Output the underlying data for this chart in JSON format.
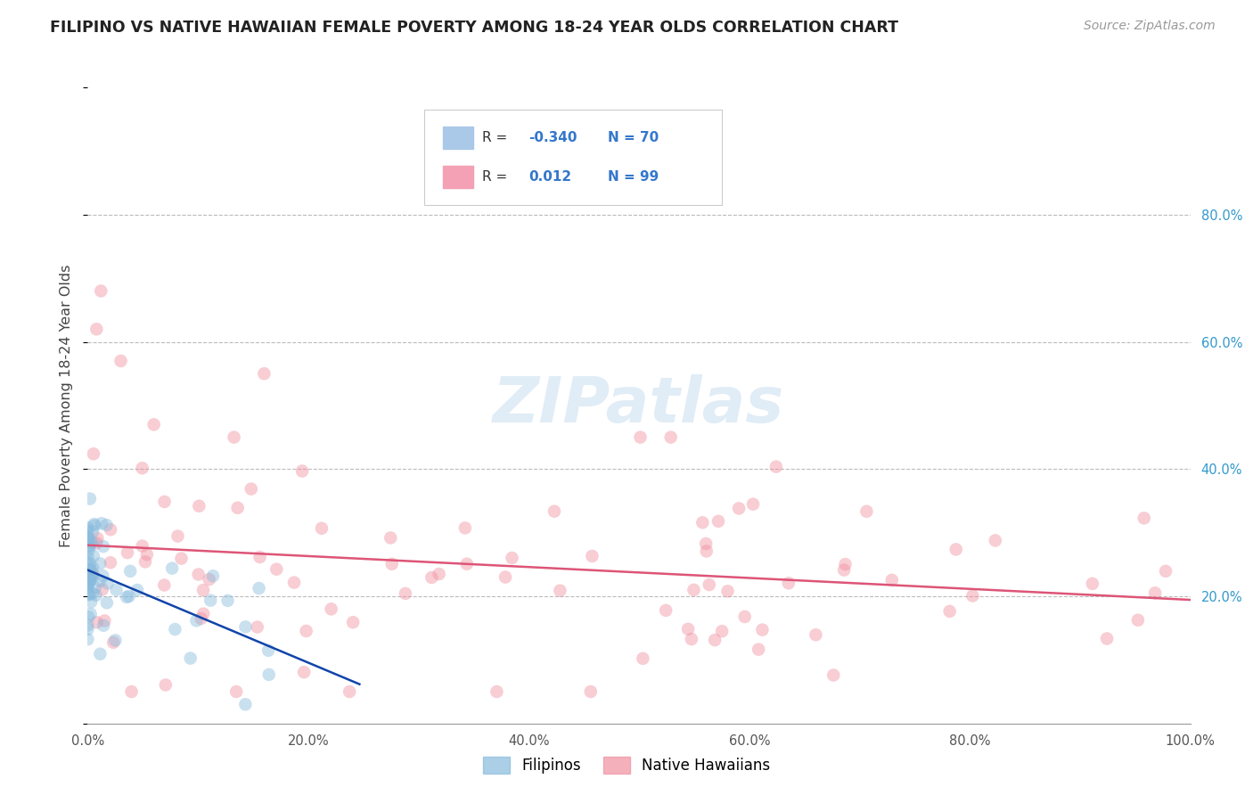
{
  "title": "FILIPINO VS NATIVE HAWAIIAN FEMALE POVERTY AMONG 18-24 YEAR OLDS CORRELATION CHART",
  "source": "Source: ZipAtlas.com",
  "ylabel": "Female Poverty Among 18-24 Year Olds",
  "xlim": [
    0,
    1.0
  ],
  "ylim": [
    0,
    1.0
  ],
  "filipinos_R": -0.34,
  "filipinos_N": 70,
  "hawaiians_R": 0.012,
  "hawaiians_N": 99,
  "filipino_color": "#aac8e8",
  "hawaiian_color": "#f4a0b5",
  "filipino_marker_color": "#88bbdd",
  "hawaiian_marker_color": "#f090a0",
  "trend_filipino_color": "#1144aa",
  "trend_hawaiian_color": "#dd5577",
  "watermark_color": "#c8ddf0",
  "background_color": "#ffffff",
  "grid_color": "#bbbbbb",
  "title_color": "#222222",
  "axis_label_color": "#444444",
  "legend_R_color": "#3377cc",
  "right_tick_color": "#3399cc"
}
